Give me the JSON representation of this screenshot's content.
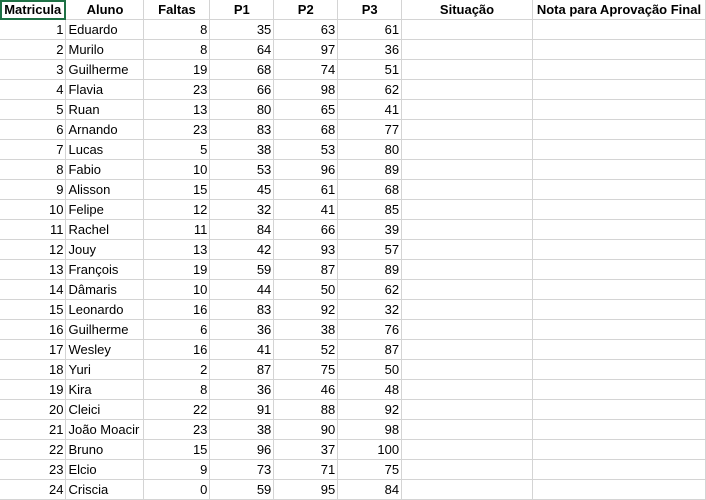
{
  "headers": [
    "Matricula",
    "Aluno",
    "Faltas",
    "P1",
    "P2",
    "P3",
    "Situação",
    "Nota para Aprovação Final"
  ],
  "rows": [
    [
      "1",
      "Eduardo",
      "8",
      "35",
      "63",
      "61",
      "",
      ""
    ],
    [
      "2",
      "Murilo",
      "8",
      "64",
      "97",
      "36",
      "",
      ""
    ],
    [
      "3",
      "Guilherme",
      "19",
      "68",
      "74",
      "51",
      "",
      ""
    ],
    [
      "4",
      "Flavia",
      "23",
      "66",
      "98",
      "62",
      "",
      ""
    ],
    [
      "5",
      "Ruan",
      "13",
      "80",
      "65",
      "41",
      "",
      ""
    ],
    [
      "6",
      "Arnando",
      "23",
      "83",
      "68",
      "77",
      "",
      ""
    ],
    [
      "7",
      "Lucas",
      "5",
      "38",
      "53",
      "80",
      "",
      ""
    ],
    [
      "8",
      "Fabio",
      "10",
      "53",
      "96",
      "89",
      "",
      ""
    ],
    [
      "9",
      "Alisson",
      "15",
      "45",
      "61",
      "68",
      "",
      ""
    ],
    [
      "10",
      "Felipe",
      "12",
      "32",
      "41",
      "85",
      "",
      ""
    ],
    [
      "11",
      "Rachel",
      "11",
      "84",
      "66",
      "39",
      "",
      ""
    ],
    [
      "12",
      "Jouy",
      "13",
      "42",
      "93",
      "57",
      "",
      ""
    ],
    [
      "13",
      "François",
      "19",
      "59",
      "87",
      "89",
      "",
      ""
    ],
    [
      "14",
      "Dâmaris",
      "10",
      "44",
      "50",
      "62",
      "",
      ""
    ],
    [
      "15",
      "Leonardo",
      "16",
      "83",
      "92",
      "32",
      "",
      ""
    ],
    [
      "16",
      "Guilherme",
      "6",
      "36",
      "38",
      "76",
      "",
      ""
    ],
    [
      "17",
      "Wesley",
      "16",
      "41",
      "52",
      "87",
      "",
      ""
    ],
    [
      "18",
      "Yuri",
      "2",
      "87",
      "75",
      "50",
      "",
      ""
    ],
    [
      "19",
      "Kira",
      "8",
      "36",
      "46",
      "48",
      "",
      ""
    ],
    [
      "20",
      "Cleici",
      "22",
      "91",
      "88",
      "92",
      "",
      ""
    ],
    [
      "21",
      "João Moacir",
      "23",
      "38",
      "90",
      "98",
      "",
      ""
    ],
    [
      "22",
      "Bruno",
      "15",
      "96",
      "37",
      "100",
      "",
      ""
    ],
    [
      "23",
      "Elcio",
      "9",
      "73",
      "71",
      "75",
      "",
      ""
    ],
    [
      "24",
      "Criscia",
      "0",
      "59",
      "95",
      "84",
      "",
      ""
    ]
  ]
}
